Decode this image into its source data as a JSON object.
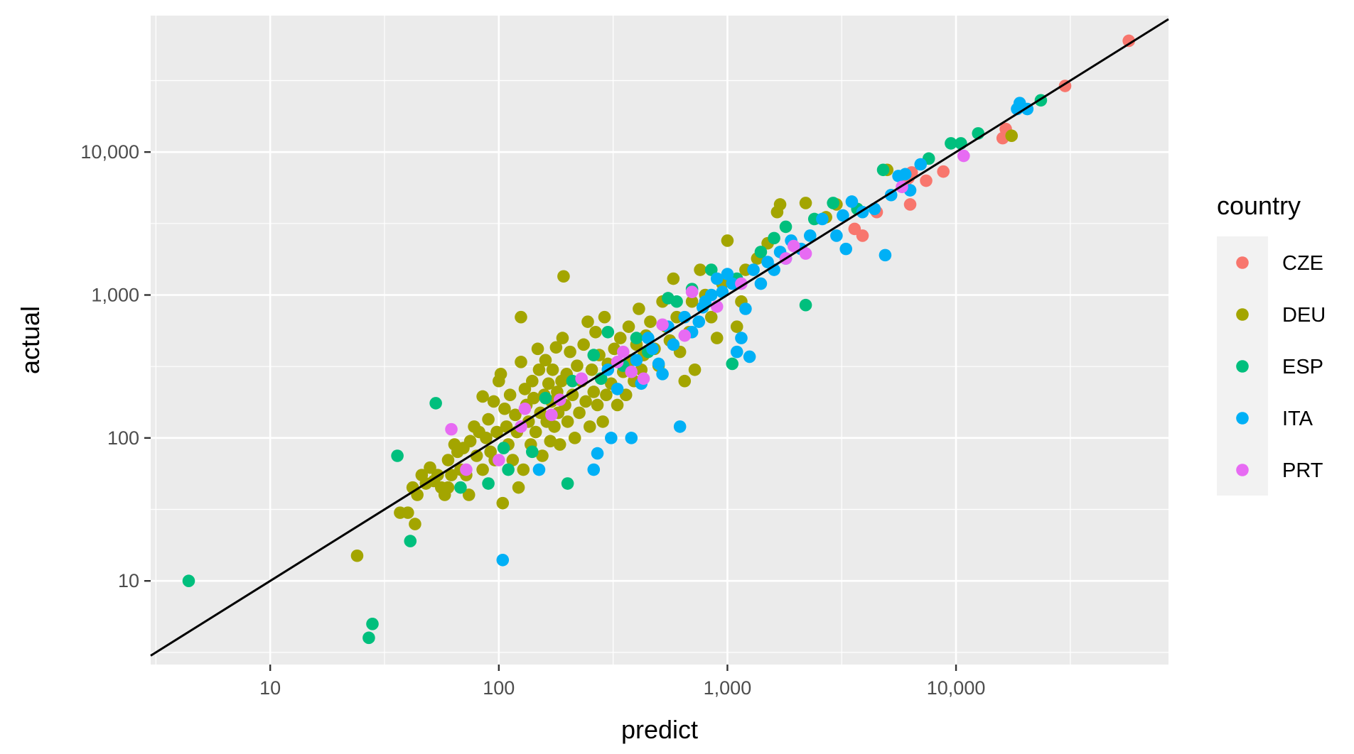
{
  "chart_data": {
    "type": "scatter",
    "title": "",
    "xlabel": "predict",
    "ylabel": "actual",
    "x_scale": "log10",
    "y_scale": "log10",
    "xlim": [
      3,
      85000
    ],
    "ylim": [
      2.6,
      90000
    ],
    "x_ticks": [
      {
        "value": 10,
        "label": "10"
      },
      {
        "value": 100,
        "label": "100"
      },
      {
        "value": 1000,
        "label": "1,000"
      },
      {
        "value": 10000,
        "label": "10,000"
      }
    ],
    "y_ticks": [
      {
        "value": 10,
        "label": "10"
      },
      {
        "value": 100,
        "label": "100"
      },
      {
        "value": 1000,
        "label": "1,000"
      },
      {
        "value": 10000,
        "label": "10,000"
      }
    ],
    "grid": true,
    "legend": {
      "title": "country",
      "position": "right"
    },
    "reference_line": {
      "type": "identity",
      "color": "#000000"
    },
    "series": [
      {
        "name": "CZE",
        "color": "#F8766D",
        "points": [
          [
            57000,
            60000
          ],
          [
            30000,
            29000
          ],
          [
            16500,
            14500
          ],
          [
            16000,
            12500
          ],
          [
            8800,
            7300
          ],
          [
            7400,
            6300
          ],
          [
            6200,
            6600
          ],
          [
            6400,
            7200
          ],
          [
            6000,
            5800
          ],
          [
            6300,
            4300
          ],
          [
            4500,
            3800
          ],
          [
            3600,
            2900
          ],
          [
            3900,
            2600
          ]
        ]
      },
      {
        "name": "DEU",
        "color": "#A3A500",
        "points": [
          [
            24,
            15
          ],
          [
            37,
            30
          ],
          [
            40,
            30
          ],
          [
            43,
            25
          ],
          [
            42,
            45
          ],
          [
            44,
            40
          ],
          [
            46,
            55
          ],
          [
            48,
            48
          ],
          [
            50,
            62
          ],
          [
            52,
            50
          ],
          [
            54,
            55
          ],
          [
            56,
            45
          ],
          [
            58,
            40
          ],
          [
            60,
            70
          ],
          [
            60,
            45
          ],
          [
            62,
            55
          ],
          [
            64,
            90
          ],
          [
            66,
            80
          ],
          [
            68,
            60
          ],
          [
            70,
            85
          ],
          [
            72,
            55
          ],
          [
            74,
            40
          ],
          [
            75,
            95
          ],
          [
            78,
            120
          ],
          [
            80,
            75
          ],
          [
            82,
            110
          ],
          [
            85,
            60
          ],
          [
            85,
            195
          ],
          [
            88,
            100
          ],
          [
            90,
            135
          ],
          [
            92,
            80
          ],
          [
            95,
            180
          ],
          [
            96,
            70
          ],
          [
            98,
            110
          ],
          [
            100,
            250
          ],
          [
            102,
            280
          ],
          [
            104,
            35
          ],
          [
            106,
            160
          ],
          [
            108,
            120
          ],
          [
            110,
            90
          ],
          [
            112,
            200
          ],
          [
            115,
            70
          ],
          [
            118,
            145
          ],
          [
            120,
            110
          ],
          [
            122,
            45
          ],
          [
            125,
            340
          ],
          [
            125,
            700
          ],
          [
            128,
            60
          ],
          [
            130,
            220
          ],
          [
            132,
            170
          ],
          [
            135,
            130
          ],
          [
            138,
            90
          ],
          [
            140,
            250
          ],
          [
            142,
            190
          ],
          [
            145,
            110
          ],
          [
            148,
            420
          ],
          [
            150,
            300
          ],
          [
            152,
            150
          ],
          [
            155,
            75
          ],
          [
            158,
            200
          ],
          [
            160,
            350
          ],
          [
            162,
            130
          ],
          [
            165,
            240
          ],
          [
            168,
            95
          ],
          [
            170,
            180
          ],
          [
            172,
            300
          ],
          [
            175,
            120
          ],
          [
            178,
            430
          ],
          [
            180,
            210
          ],
          [
            182,
            150
          ],
          [
            185,
            90
          ],
          [
            188,
            250
          ],
          [
            190,
            500
          ],
          [
            192,
            1350
          ],
          [
            195,
            170
          ],
          [
            198,
            280
          ],
          [
            200,
            130
          ],
          [
            205,
            400
          ],
          [
            210,
            200
          ],
          [
            215,
            100
          ],
          [
            220,
            320
          ],
          [
            225,
            150
          ],
          [
            230,
            250
          ],
          [
            235,
            450
          ],
          [
            240,
            180
          ],
          [
            245,
            650
          ],
          [
            250,
            120
          ],
          [
            255,
            300
          ],
          [
            260,
            210
          ],
          [
            265,
            550
          ],
          [
            270,
            170
          ],
          [
            275,
            380
          ],
          [
            280,
            260
          ],
          [
            285,
            130
          ],
          [
            290,
            700
          ],
          [
            295,
            200
          ],
          [
            300,
            330
          ],
          [
            310,
            240
          ],
          [
            320,
            420
          ],
          [
            330,
            170
          ],
          [
            340,
            500
          ],
          [
            350,
            290
          ],
          [
            360,
            200
          ],
          [
            370,
            600
          ],
          [
            380,
            350
          ],
          [
            390,
            250
          ],
          [
            400,
            450
          ],
          [
            410,
            800
          ],
          [
            420,
            300
          ],
          [
            430,
            380
          ],
          [
            440,
            520
          ],
          [
            460,
            650
          ],
          [
            480,
            420
          ],
          [
            500,
            320
          ],
          [
            520,
            900
          ],
          [
            540,
            600
          ],
          [
            560,
            480
          ],
          [
            580,
            1300
          ],
          [
            600,
            700
          ],
          [
            620,
            400
          ],
          [
            650,
            250
          ],
          [
            680,
            550
          ],
          [
            700,
            900
          ],
          [
            720,
            300
          ],
          [
            760,
            1500
          ],
          [
            800,
            1000
          ],
          [
            850,
            700
          ],
          [
            900,
            500
          ],
          [
            950,
            1200
          ],
          [
            1000,
            2400
          ],
          [
            1100,
            600
          ],
          [
            1150,
            900
          ],
          [
            1200,
            1500
          ],
          [
            1350,
            1800
          ],
          [
            1500,
            2300
          ],
          [
            1650,
            3800
          ],
          [
            1700,
            4300
          ],
          [
            2200,
            4400
          ],
          [
            2700,
            3500
          ],
          [
            3000,
            4300
          ],
          [
            5000,
            7500
          ],
          [
            17500,
            13000
          ]
        ]
      },
      {
        "name": "ESP",
        "color": "#00BF7D",
        "points": [
          [
            4.4,
            10
          ],
          [
            27,
            4
          ],
          [
            28,
            5
          ],
          [
            36,
            75
          ],
          [
            41,
            19
          ],
          [
            53,
            175
          ],
          [
            68,
            45
          ],
          [
            90,
            48
          ],
          [
            105,
            85
          ],
          [
            110,
            60
          ],
          [
            140,
            80
          ],
          [
            160,
            190
          ],
          [
            200,
            48
          ],
          [
            210,
            250
          ],
          [
            260,
            380
          ],
          [
            280,
            260
          ],
          [
            300,
            550
          ],
          [
            350,
            320
          ],
          [
            400,
            500
          ],
          [
            450,
            400
          ],
          [
            550,
            950
          ],
          [
            600,
            900
          ],
          [
            700,
            1100
          ],
          [
            850,
            1500
          ],
          [
            1050,
            330
          ],
          [
            1100,
            1300
          ],
          [
            1400,
            2000
          ],
          [
            1600,
            2500
          ],
          [
            1800,
            3000
          ],
          [
            2200,
            850
          ],
          [
            2400,
            3400
          ],
          [
            2900,
            4400
          ],
          [
            3700,
            4000
          ],
          [
            4800,
            7500
          ],
          [
            7600,
            9000
          ],
          [
            9500,
            11500
          ],
          [
            10500,
            11500
          ],
          [
            12500,
            13500
          ],
          [
            23500,
            23000
          ]
        ]
      },
      {
        "name": "ITA",
        "color": "#00B0F6",
        "points": [
          [
            104,
            14
          ],
          [
            150,
            60
          ],
          [
            260,
            60
          ],
          [
            270,
            78
          ],
          [
            300,
            300
          ],
          [
            310,
            100
          ],
          [
            330,
            220
          ],
          [
            380,
            100
          ],
          [
            400,
            350
          ],
          [
            420,
            240
          ],
          [
            450,
            500
          ],
          [
            470,
            420
          ],
          [
            500,
            330
          ],
          [
            520,
            280
          ],
          [
            550,
            600
          ],
          [
            580,
            450
          ],
          [
            620,
            120
          ],
          [
            650,
            700
          ],
          [
            700,
            550
          ],
          [
            750,
            650
          ],
          [
            780,
            820
          ],
          [
            800,
            900
          ],
          [
            850,
            1000
          ],
          [
            900,
            1300
          ],
          [
            950,
            1050
          ],
          [
            1000,
            1400
          ],
          [
            1050,
            1200
          ],
          [
            1100,
            400
          ],
          [
            1150,
            500
          ],
          [
            1200,
            800
          ],
          [
            1250,
            370
          ],
          [
            1300,
            1500
          ],
          [
            1400,
            1200
          ],
          [
            1500,
            1700
          ],
          [
            1600,
            1500
          ],
          [
            1700,
            2000
          ],
          [
            1800,
            1800
          ],
          [
            1900,
            2400
          ],
          [
            2100,
            2100
          ],
          [
            2300,
            2600
          ],
          [
            2600,
            3400
          ],
          [
            3000,
            2600
          ],
          [
            3200,
            3600
          ],
          [
            3500,
            4500
          ],
          [
            3900,
            3800
          ],
          [
            4400,
            4000
          ],
          [
            5200,
            5000
          ],
          [
            5600,
            6800
          ],
          [
            6000,
            7000
          ],
          [
            6300,
            5400
          ],
          [
            7000,
            8200
          ],
          [
            18500,
            20000
          ],
          [
            19000,
            22000
          ],
          [
            20500,
            20000
          ],
          [
            3300,
            2100
          ],
          [
            4900,
            1900
          ]
        ]
      },
      {
        "name": "PRT",
        "color": "#E76BF3",
        "points": [
          [
            62,
            115
          ],
          [
            72,
            60
          ],
          [
            100,
            70
          ],
          [
            125,
            120
          ],
          [
            130,
            160
          ],
          [
            170,
            145
          ],
          [
            185,
            185
          ],
          [
            230,
            260
          ],
          [
            330,
            340
          ],
          [
            350,
            400
          ],
          [
            380,
            290
          ],
          [
            430,
            260
          ],
          [
            520,
            620
          ],
          [
            650,
            520
          ],
          [
            700,
            1050
          ],
          [
            900,
            830
          ],
          [
            1150,
            1200
          ],
          [
            1800,
            1800
          ],
          [
            1950,
            2200
          ],
          [
            2200,
            1950
          ],
          [
            5800,
            5700
          ],
          [
            10800,
            9400
          ]
        ]
      }
    ]
  }
}
